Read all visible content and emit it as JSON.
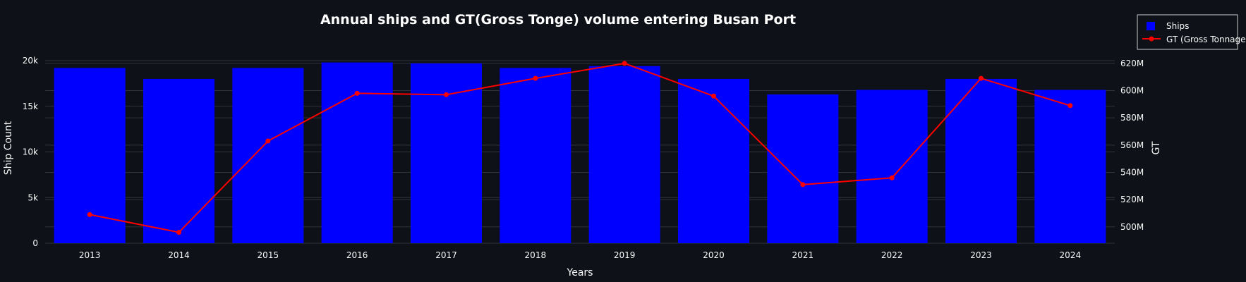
{
  "chart_data": {
    "type": "bar+line",
    "title": "Annual ships and GT(Gross Tonge) volume entering Busan Port",
    "xlabel": "Years",
    "ylabel": "Ship Count",
    "y2label": "GT",
    "categories": [
      "2013",
      "2014",
      "2015",
      "2016",
      "2017",
      "2018",
      "2019",
      "2020",
      "2021",
      "2022",
      "2023",
      "2024"
    ],
    "series": [
      {
        "name": "Ships",
        "type": "bar",
        "axis": "y",
        "color": "#0000ff",
        "values": [
          19200,
          18000,
          19200,
          19800,
          19700,
          19200,
          19400,
          18000,
          16300,
          16800,
          18000,
          16800
        ]
      },
      {
        "name": "GT (Gross Tonnage)",
        "type": "line",
        "axis": "y2",
        "color": "#ff0000",
        "values": [
          509000000,
          496000000,
          563000000,
          598000000,
          597000000,
          609000000,
          620000000,
          596000000,
          531000000,
          536000000,
          609000000,
          589000000
        ]
      }
    ],
    "ylim": [
      0,
      20000
    ],
    "y_ticks": [
      0,
      5000,
      10000,
      15000,
      20000
    ],
    "y_tick_labels": [
      "0",
      "5k",
      "10k",
      "15k",
      "20k"
    ],
    "y2lim": [
      488000000,
      622000000
    ],
    "y2_ticks": [
      500000000,
      520000000,
      540000000,
      560000000,
      580000000,
      600000000,
      620000000
    ],
    "y2_tick_labels": [
      "500M",
      "520M",
      "540M",
      "560M",
      "580M",
      "600M",
      "620M"
    ],
    "grid": true,
    "legend_position": "top-right"
  }
}
